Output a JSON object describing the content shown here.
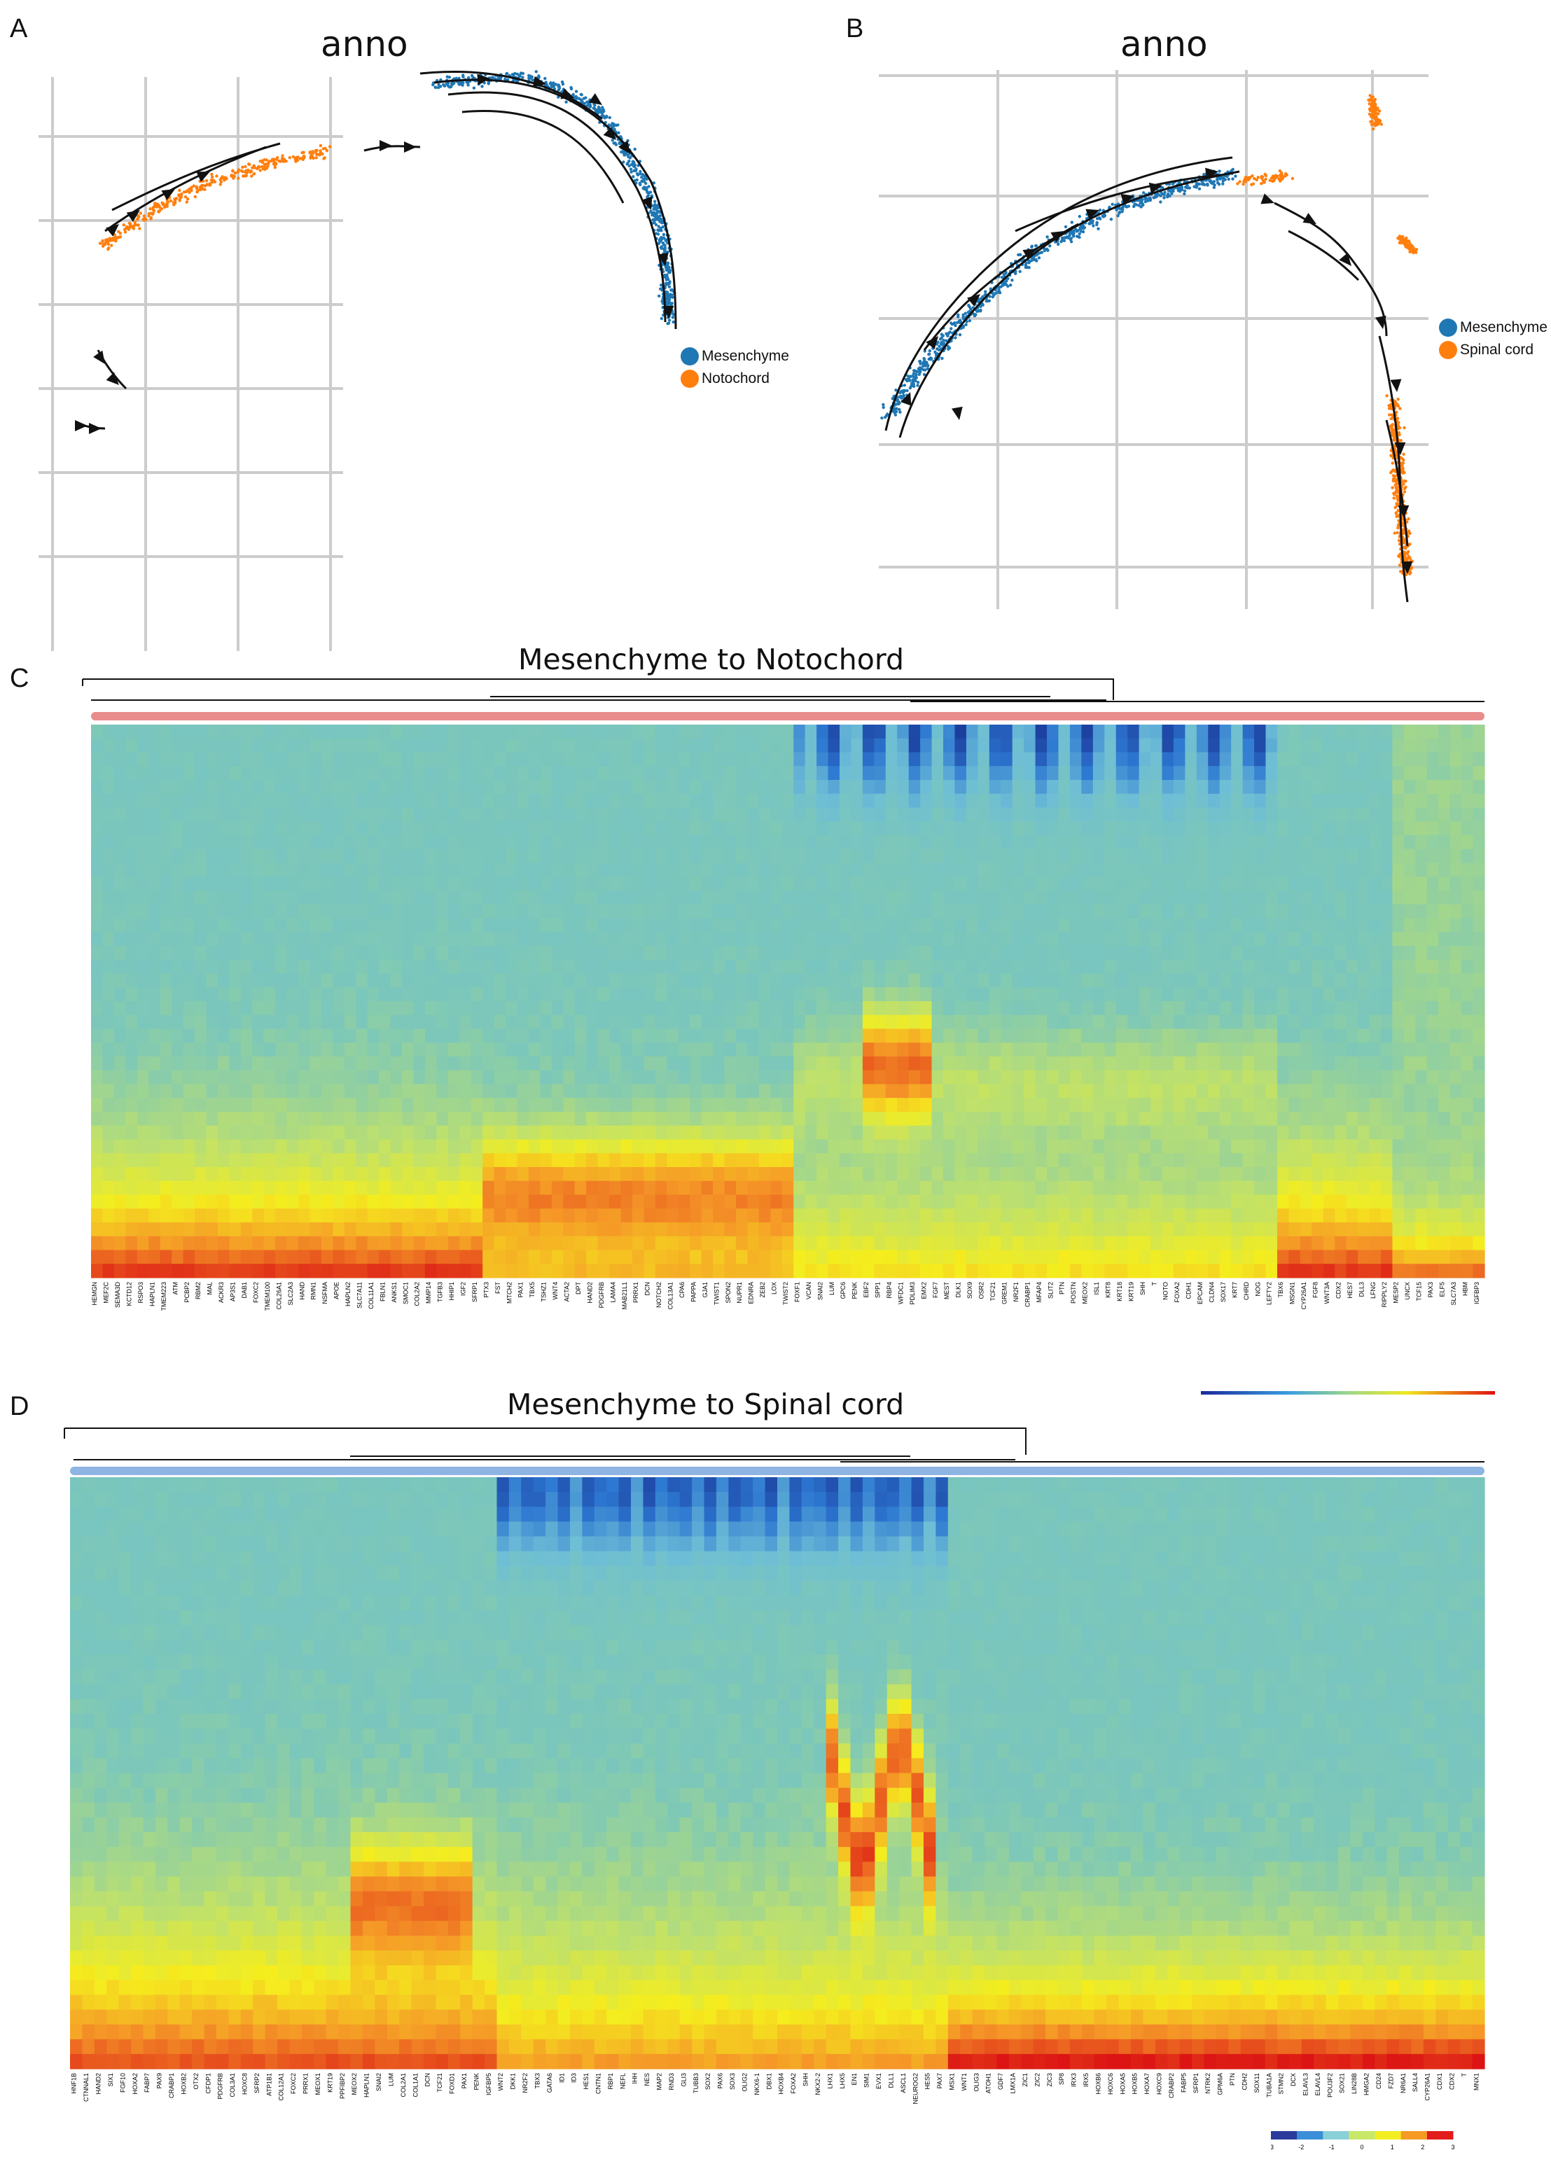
{
  "panels": {
    "A": {
      "letter": "A",
      "title": "anno",
      "legend": [
        {
          "label": "Mesenchyme",
          "color": "#1f77b4"
        },
        {
          "label": "Notochord",
          "color": "#ff7f0e"
        }
      ]
    },
    "B": {
      "letter": "B",
      "title": "anno",
      "legend": [
        {
          "label": "Mesenchyme",
          "color": "#1f77b4"
        },
        {
          "label": "Spinal cord",
          "color": "#ff7f0e"
        }
      ]
    },
    "C": {
      "letter": "C",
      "title": "Mesenchyme to Notochord",
      "lineage_color": "#e88c8c"
    },
    "D": {
      "letter": "D",
      "title": "Mesenchyme to Spinal cord",
      "lineage_color": "#8db4e2"
    }
  },
  "colorbar": {
    "colors": [
      "#2a3b9c",
      "#3a8fd8",
      "#8ad0d8",
      "#c8e86a",
      "#f2ee22",
      "#f59a24",
      "#e21b1b"
    ],
    "ticks": [
      "-3",
      "-2",
      "-1",
      "0",
      "1",
      "2",
      "3"
    ]
  },
  "chart_data": [
    {
      "type": "scatter",
      "title": "anno",
      "series": [
        {
          "name": "Mesenchyme",
          "color": "#1f77b4"
        },
        {
          "name": "Notochord",
          "color": "#ff7f0e"
        }
      ],
      "grid": true,
      "legend": "right",
      "overlay": "velocity stream arrows"
    },
    {
      "type": "scatter",
      "title": "anno",
      "series": [
        {
          "name": "Mesenchyme",
          "color": "#1f77b4"
        },
        {
          "name": "Spinal cord",
          "color": "#ff7f0e"
        }
      ],
      "grid": true,
      "legend": "right",
      "overlay": "velocity stream arrows"
    },
    {
      "type": "heatmap",
      "title": "Mesenchyme to Notochord",
      "genes": [
        "HEMGN",
        "MEF2C",
        "SEMA3D",
        "KCTD12",
        "RSPO3",
        "HAPLN1",
        "TMEM223",
        "ATM",
        "PCBP2",
        "RBM2",
        "MAL",
        "ACKR3",
        "AP3S1",
        "DAB1",
        "FOXC2",
        "TMEM100",
        "COL26A1",
        "SLC2A3",
        "HAND",
        "RMN1",
        "NSFMA",
        "APOE",
        "HAPLN2",
        "SLC7A11",
        "COL11A1",
        "FBLN1",
        "ANKS1",
        "SMOC1",
        "COL2A2",
        "MMP14",
        "TGFB3",
        "HHIP1",
        "IGF2",
        "SFRP1",
        "PTX3",
        "FST",
        "MTCH2",
        "PAX1",
        "TBX5",
        "TSHZ1",
        "WNT4",
        "ACTA2",
        "DPT",
        "HAND2",
        "PDGFRB",
        "LAMA4",
        "MAB21L1",
        "PRRX1",
        "DCN",
        "NOTCH2",
        "COL13A1",
        "CPA6",
        "PAPPA",
        "GJA1",
        "TWIST1",
        "SPON2",
        "NUPR1",
        "EDNRA",
        "ZEB2",
        "LOX",
        "TWIST2",
        "FOXF1",
        "VCAN",
        "SNAI2",
        "LUM",
        "GPC6",
        "PENK",
        "EBF2",
        "SPP1",
        "RBP4",
        "WFDC1",
        "PDLIM3",
        "EMX2",
        "FGF7",
        "MEST",
        "DLK1",
        "SOX9",
        "OSR2",
        "TCF21",
        "GREM1",
        "NR2F1",
        "CRABP1",
        "MFAP4",
        "SLIT2",
        "PTN",
        "POSTN",
        "MEOX2",
        "ISL1",
        "KRT8",
        "KRT18",
        "KRT19",
        "SHH",
        "T",
        "NOTO",
        "FOXA2",
        "CDH1",
        "EPCAM",
        "CLDN4",
        "SOX17",
        "KRT7",
        "CHRD",
        "NOG",
        "LEFTY2",
        "TBX6",
        "MSGN1",
        "CYP26A1",
        "FGF8",
        "WNT3A",
        "CDX2",
        "HES7",
        "DLL3",
        "LFNG",
        "RIPPLY2",
        "MESP2",
        "UNCX",
        "TCF15",
        "PAX3",
        "ELF5",
        "SLC7A3",
        "HBM",
        "IGFBP3"
      ]
    },
    {
      "type": "heatmap",
      "title": "Mesenchyme to Spinal cord",
      "genes": [
        "HNF1B",
        "CTNNAL1",
        "HAND2",
        "SIX1",
        "FGF10",
        "HOXA2",
        "FABP7",
        "PAX9",
        "CRABP1",
        "HOXB2",
        "OTX2",
        "CFDP1",
        "PDGFRB",
        "COL3A1",
        "HOXC8",
        "SFRP2",
        "ATP1B1",
        "COL12A1",
        "FOXC2",
        "PRRX1",
        "MEOX1",
        "KRT19",
        "PPFIBP2",
        "MEOX2",
        "HAPLN1",
        "SNAI2",
        "LUM",
        "COL2A1",
        "COL1A1",
        "DCN",
        "TCF21",
        "FOXD1",
        "PAX1",
        "PENK",
        "IGFBP5",
        "WNT2",
        "DKK1",
        "NR2F2",
        "TBX3",
        "GATA6",
        "ID1",
        "ID3",
        "HES1",
        "CNTN1",
        "RBP1",
        "NEFL",
        "IHH",
        "NES",
        "MAP2",
        "RND3",
        "GLI3",
        "TUBB3",
        "SOX2",
        "PAX6",
        "SOX3",
        "OLIG2",
        "NKX6-1",
        "DBX1",
        "HOXB4",
        "FOXA2",
        "SHH",
        "NKX2-2",
        "LHX1",
        "LHX5",
        "EN1",
        "SIM1",
        "EVX1",
        "DLL1",
        "ASCL1",
        "NEUROG2",
        "HES5",
        "PAX7",
        "MSX1",
        "WNT1",
        "OLIG3",
        "ATOH1",
        "GDF7",
        "LMX1A",
        "ZIC1",
        "ZIC2",
        "ZIC3",
        "SP8",
        "IRX3",
        "IRX5",
        "HOXB6",
        "HOXC6",
        "HOXA5",
        "HOXB5",
        "HOXA7",
        "HOXC9",
        "CRABP2",
        "FABP5",
        "SFRP1",
        "NTRK2",
        "GPM6A",
        "PTN",
        "CDH2",
        "SOX11",
        "TUBA1A",
        "STMN2",
        "DCX",
        "ELAVL3",
        "ELAVL4",
        "POU3F2",
        "SOX21",
        "LIN28B",
        "HMGA2",
        "CD24",
        "FZD7",
        "NR6A1",
        "SALL4",
        "CYP26A1",
        "CDX1",
        "CDX2",
        "T",
        "MNX1"
      ]
    }
  ]
}
